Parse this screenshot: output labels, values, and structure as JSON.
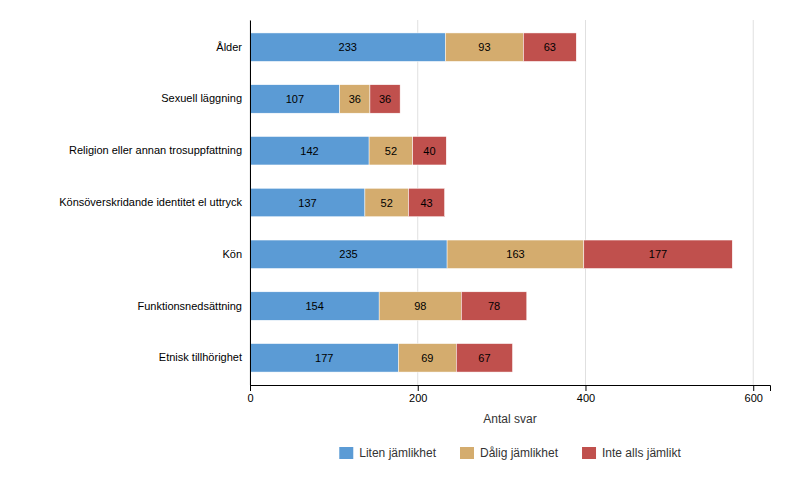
{
  "chart_data": {
    "type": "bar",
    "orientation": "horizontal",
    "stacked": true,
    "categories": [
      "Ålder",
      "Sexuell läggning",
      "Religion eller annan trosuppfattning",
      "Könsöverskridande identitet el uttryck",
      "Kön",
      "Funktionsnedsättning",
      "Etnisk tillhörighet"
    ],
    "series": [
      {
        "name": "Liten jämlikhet",
        "color": "#5B9BD5",
        "values": [
          233,
          107,
          142,
          137,
          235,
          154,
          177
        ]
      },
      {
        "name": "Dålig jämlikhet",
        "color": "#D4AC6E",
        "values": [
          93,
          36,
          52,
          52,
          163,
          98,
          69
        ]
      },
      {
        "name": "Inte alls jämlikt",
        "color": "#C0504D",
        "values": [
          63,
          36,
          40,
          43,
          177,
          78,
          67
        ]
      }
    ],
    "xlabel": "Antal svar",
    "xlim": [
      0,
      620
    ],
    "xticks": [
      0,
      200,
      400,
      600
    ],
    "grid": true,
    "data_labels": true,
    "legend": "bottom"
  }
}
